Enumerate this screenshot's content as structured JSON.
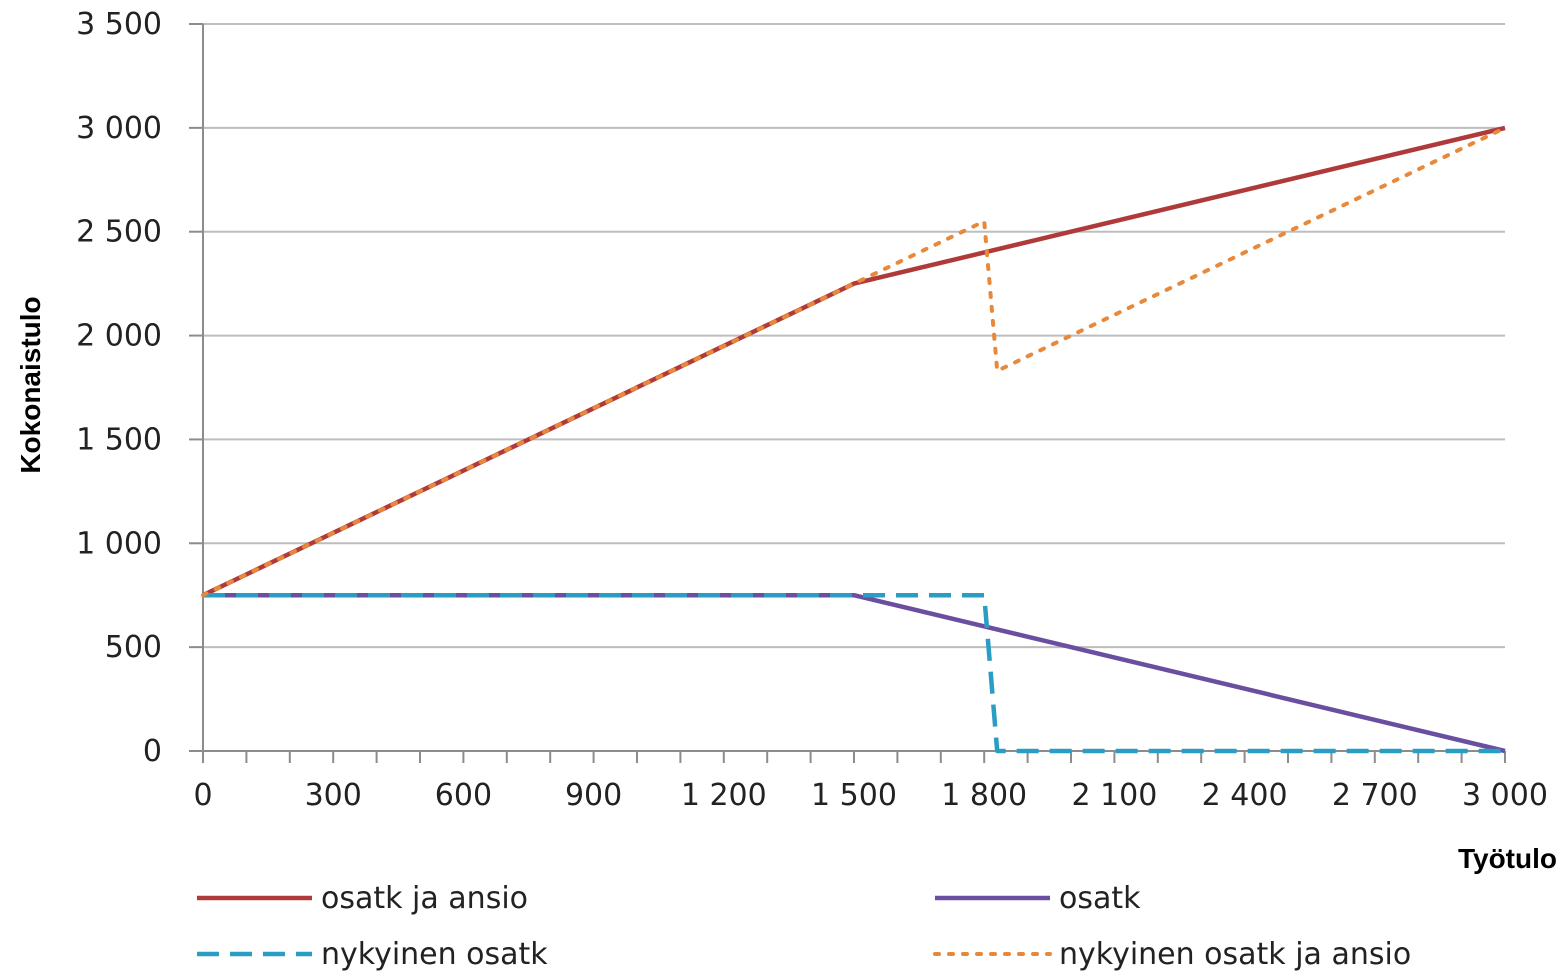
{
  "chart_data": {
    "type": "line",
    "xlabel": "Työtulo",
    "ylabel": "Kokonaistulo",
    "xlim": [
      0,
      3000
    ],
    "ylim": [
      0,
      3500
    ],
    "grid": "horizontal",
    "legend_position": "bottom",
    "x_ticks": [
      "0",
      "300",
      "600",
      "900",
      "1 200",
      "1 500",
      "1 800",
      "2 100",
      "2 400",
      "2 700",
      "3 000"
    ],
    "y_ticks": [
      "0",
      "500",
      "1 000",
      "1 500",
      "2 000",
      "2 500",
      "3 000",
      "3 500"
    ],
    "series": [
      {
        "name": "osatk ja ansio",
        "color": "#b03a3a",
        "style": "solid",
        "points": [
          [
            0,
            750
          ],
          [
            1500,
            2250
          ],
          [
            3000,
            3000
          ]
        ]
      },
      {
        "name": "osatk",
        "color": "#6a4fa0",
        "style": "solid",
        "points": [
          [
            0,
            750
          ],
          [
            1500,
            750
          ],
          [
            3000,
            0
          ]
        ]
      },
      {
        "name": "nykyinen osatk",
        "color": "#2a9dc4",
        "style": "dashed",
        "points": [
          [
            0,
            750
          ],
          [
            1800,
            750
          ],
          [
            1830,
            0
          ],
          [
            3000,
            0
          ]
        ]
      },
      {
        "name": "nykyinen osatk ja ansio",
        "color": "#e8883a",
        "style": "dotted",
        "points": [
          [
            0,
            750
          ],
          [
            1800,
            2550
          ],
          [
            1830,
            1830
          ],
          [
            3000,
            3000
          ]
        ]
      }
    ]
  }
}
